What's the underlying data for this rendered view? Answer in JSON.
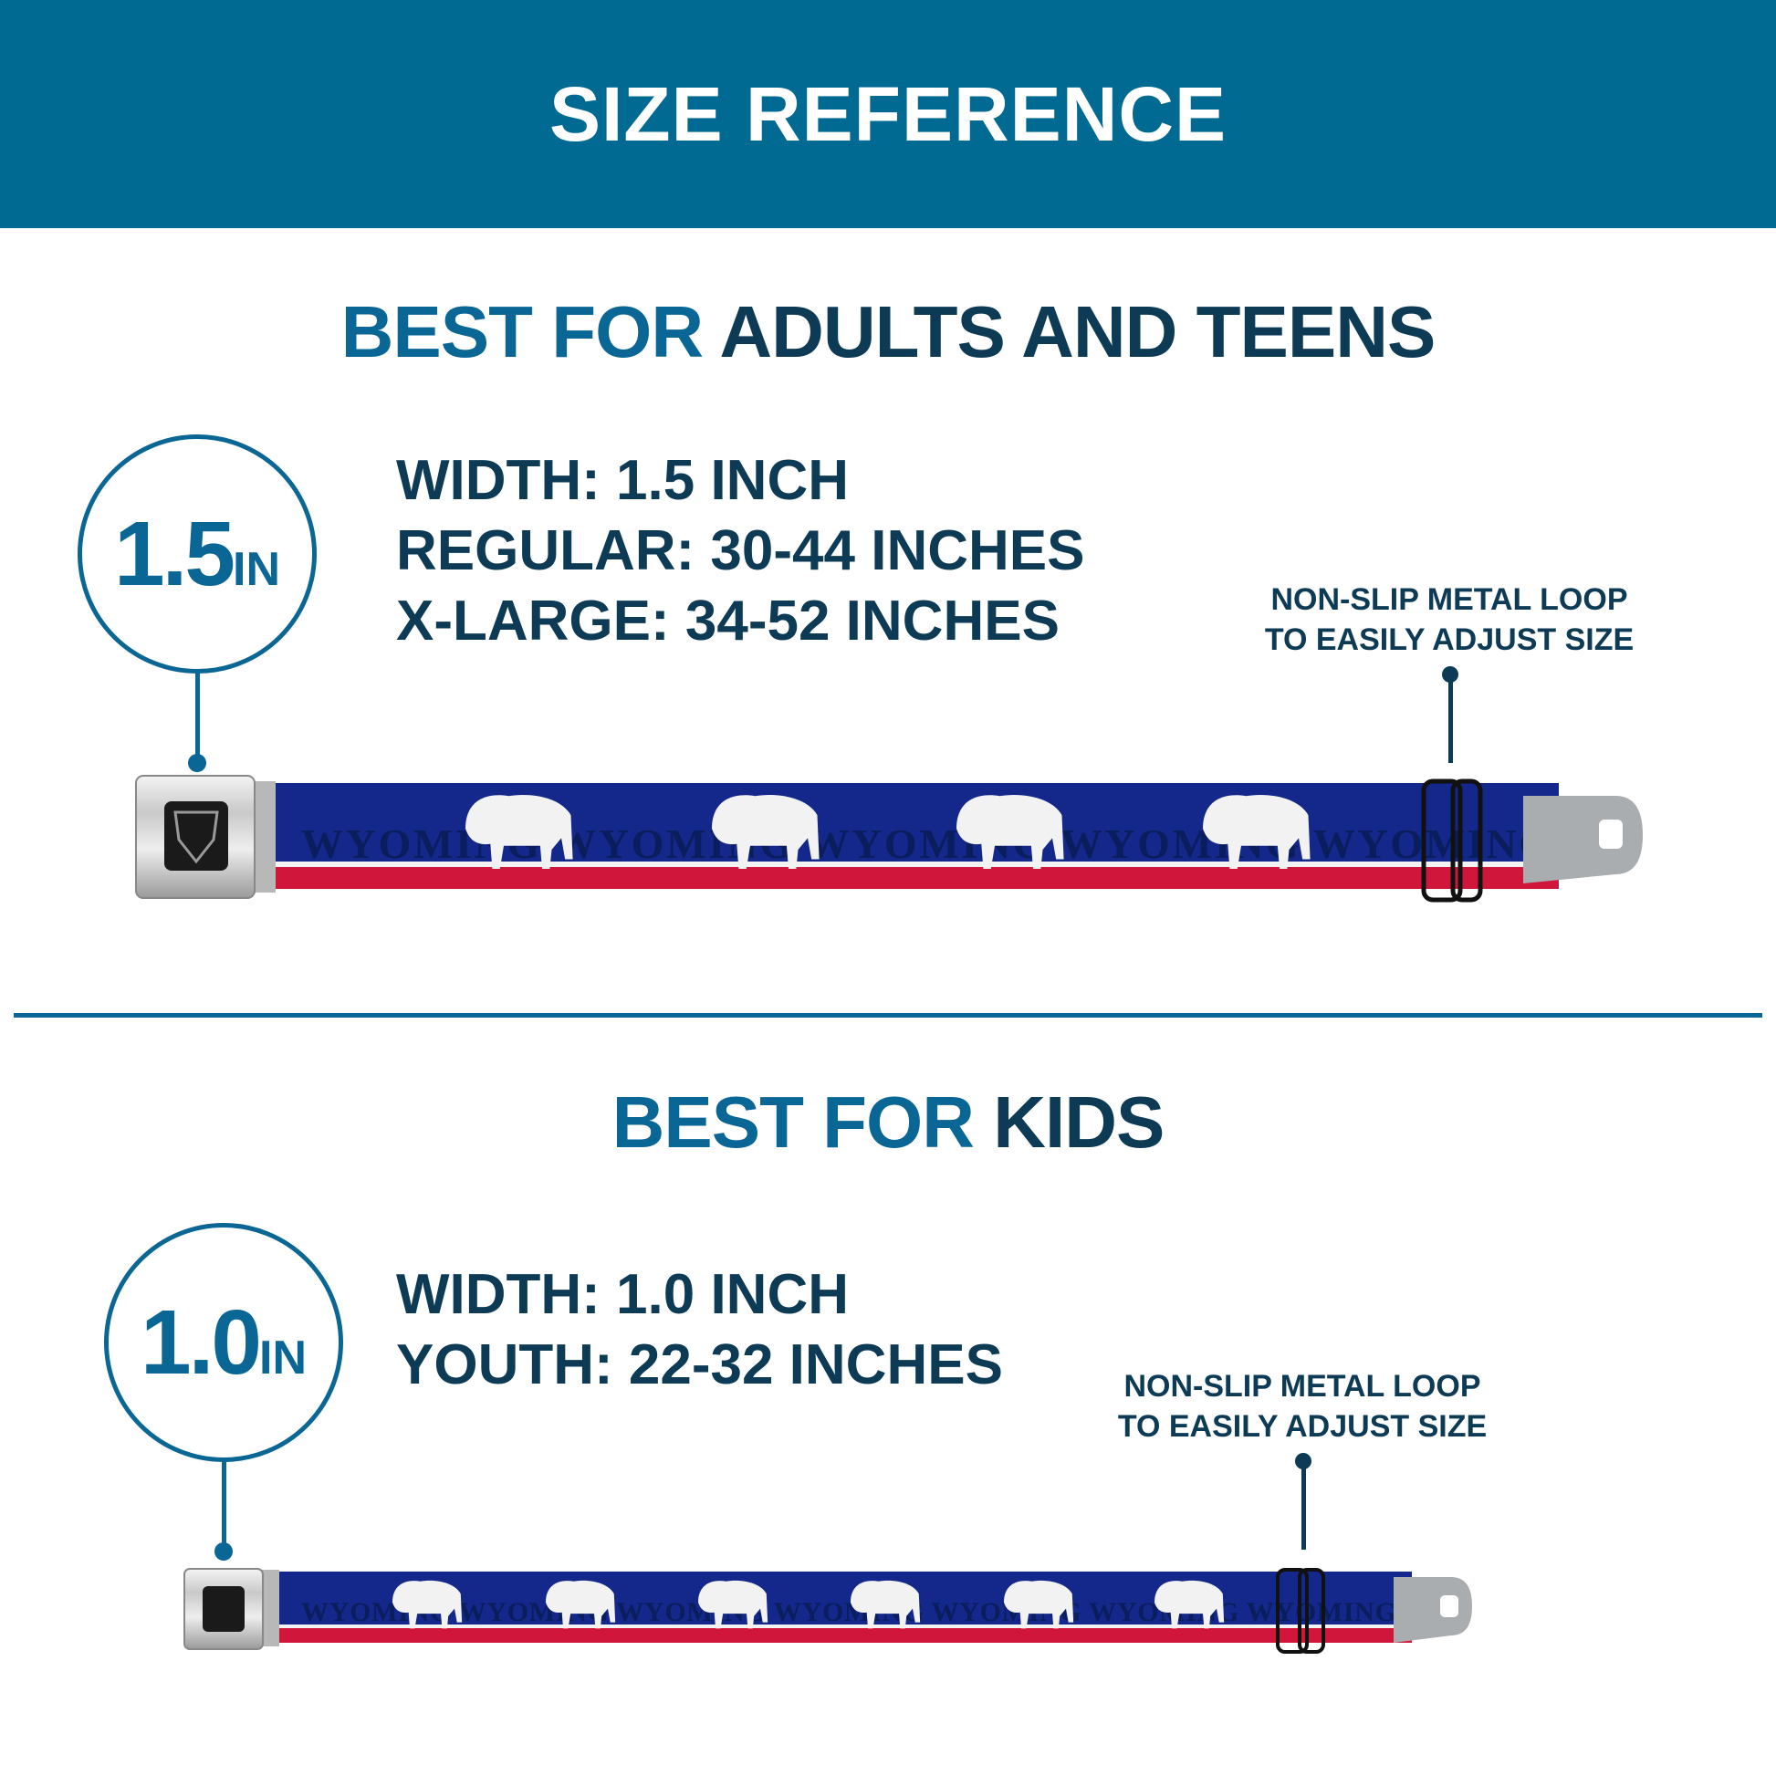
{
  "header": {
    "title": "SIZE REFERENCE"
  },
  "colors": {
    "banner": "#006a93",
    "accent": "#0a6694",
    "dark": "#0d3a55",
    "strap_blue": "#13288a",
    "strap_red": "#d0163b"
  },
  "adults": {
    "heading_accent": "BEST FOR",
    "heading_main": "ADULTS AND TEENS",
    "badge_number": "1.5",
    "badge_unit": "IN",
    "specs": [
      "WIDTH: 1.5 INCH",
      "REGULAR: 30-44 INCHES",
      "X-LARGE: 34-52 INCHES"
    ],
    "note": [
      "NON-SLIP METAL LOOP",
      "TO EASILY ADJUST SIZE"
    ],
    "strap_text": "WYOMING"
  },
  "kids": {
    "heading_accent": "BEST FOR",
    "heading_main": "KIDS",
    "badge_number": "1.0",
    "badge_unit": "IN",
    "specs": [
      "WIDTH: 1.0 INCH",
      "YOUTH: 22-32 INCHES"
    ],
    "note": [
      "NON-SLIP METAL LOOP",
      "TO EASILY ADJUST SIZE"
    ],
    "strap_text": "WYOMING"
  },
  "icons": {
    "buckle_logo": "bd-shield-logo",
    "animal": "bison-silhouette"
  }
}
